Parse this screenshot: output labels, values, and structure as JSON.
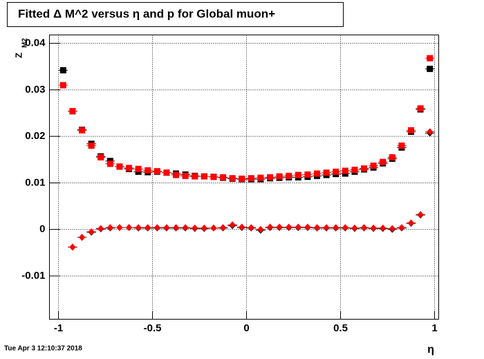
{
  "chart_data": {
    "type": "scatter",
    "title": "Fitted Δ M^2 versus η and p for Global muon+",
    "xlabel": "η",
    "ylabel": "Z",
    "ylabel_subscript": "M2",
    "timestamp": "Tue Apr  3 12:10:37 2018",
    "x": [
      -0.975,
      -0.925,
      -0.875,
      -0.825,
      -0.775,
      -0.725,
      -0.675,
      -0.625,
      -0.575,
      -0.525,
      -0.475,
      -0.425,
      -0.375,
      -0.325,
      -0.275,
      -0.225,
      -0.175,
      -0.125,
      -0.075,
      -0.025,
      0.025,
      0.075,
      0.125,
      0.175,
      0.225,
      0.275,
      0.325,
      0.375,
      0.425,
      0.475,
      0.525,
      0.575,
      0.625,
      0.675,
      0.725,
      0.775,
      0.825,
      0.875,
      0.925,
      0.975
    ],
    "series": [
      {
        "color": "#000000",
        "marker": "square",
        "values": [
          0.0342,
          0.0254,
          0.0214,
          0.0184,
          0.0157,
          0.0147,
          0.0135,
          0.013,
          0.0124,
          0.0123,
          0.0124,
          0.0122,
          0.012,
          0.0118,
          0.0115,
          0.0114,
          0.0113,
          0.0111,
          0.0109,
          0.0108,
          0.0108,
          0.0108,
          0.011,
          0.0111,
          0.0112,
          0.0112,
          0.0113,
          0.0115,
          0.0117,
          0.0119,
          0.012,
          0.0124,
          0.0129,
          0.0133,
          0.0142,
          0.0152,
          0.0176,
          0.021,
          0.0258,
          0.0345
        ]
      },
      {
        "color": "#ff0000",
        "marker": "square",
        "values": [
          0.031,
          0.0254,
          0.0213,
          0.018,
          0.0155,
          0.0141,
          0.0135,
          0.0132,
          0.013,
          0.0127,
          0.0125,
          0.0122,
          0.0117,
          0.0115,
          0.0114,
          0.0114,
          0.0113,
          0.0112,
          0.011,
          0.0109,
          0.011,
          0.0111,
          0.0112,
          0.0114,
          0.0115,
          0.0117,
          0.0118,
          0.012,
          0.0122,
          0.0124,
          0.0126,
          0.0128,
          0.0131,
          0.0137,
          0.0145,
          0.0155,
          0.018,
          0.0213,
          0.026,
          0.0368
        ]
      },
      {
        "color": "#000000",
        "marker": "diamond",
        "values": [
          null,
          -0.0038,
          -0.0017,
          -0.0006,
          0.0001,
          0.0003,
          0.0004,
          0.0004,
          0.0003,
          0.0003,
          0.0003,
          0.0003,
          0.0003,
          0.0003,
          0.0002,
          0.0002,
          0.0003,
          0.0003,
          0.0008,
          0.0004,
          0.0003,
          -0.0002,
          0.0004,
          0.0004,
          0.0004,
          0.0004,
          0.0004,
          0.0003,
          0.0003,
          0.0003,
          0.0003,
          0.0002,
          0.0003,
          0.0002,
          0.0002,
          0.0,
          0.0003,
          0.0013,
          0.0031,
          0.0207
        ]
      },
      {
        "color": "#ff0000",
        "marker": "diamond",
        "values": [
          null,
          -0.0038,
          -0.0017,
          -0.0005,
          0.0002,
          0.0004,
          0.0004,
          0.0004,
          0.0004,
          0.0004,
          0.0004,
          0.0004,
          0.0004,
          0.0004,
          0.0003,
          0.0003,
          0.0003,
          0.0004,
          0.001,
          0.0005,
          0.0004,
          0.0,
          0.0005,
          0.0005,
          0.0005,
          0.0005,
          0.0005,
          0.0004,
          0.0004,
          0.0004,
          0.0004,
          0.0003,
          0.0004,
          0.0003,
          0.0003,
          0.0002,
          0.0004,
          0.0014,
          0.0032,
          0.021
        ]
      }
    ],
    "xlim": [
      -1.048,
      1.022
    ],
    "xticks": [
      -1,
      -0.5,
      0,
      0.5,
      1
    ],
    "ylim": [
      -0.0193,
      0.0418
    ],
    "yticks": [
      -0.01,
      0,
      0.01,
      0.02,
      0.03,
      0.04
    ],
    "grid": true
  }
}
